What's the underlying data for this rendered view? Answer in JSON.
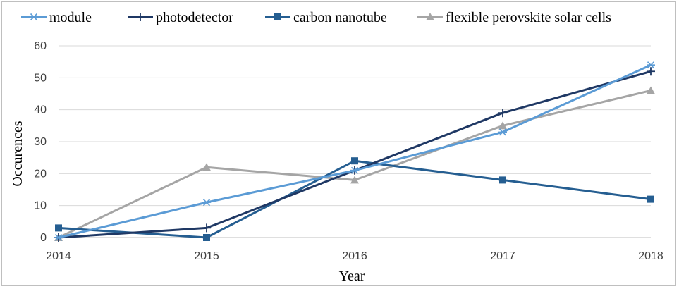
{
  "chart_data": {
    "type": "line",
    "title": "",
    "xlabel": "Year",
    "ylabel": "Occurences",
    "x": [
      "2014",
      "2015",
      "2016",
      "2017",
      "2018"
    ],
    "ylim": [
      0,
      60
    ],
    "yticks": [
      0,
      10,
      20,
      30,
      40,
      50,
      60
    ],
    "grid": true,
    "legend_position": "top",
    "series": [
      {
        "name": "module",
        "values": [
          0,
          11,
          21,
          33,
          54
        ],
        "color": "#5b9bd5",
        "marker": "asterisk"
      },
      {
        "name": "photodetector",
        "values": [
          0,
          3,
          21,
          39,
          52
        ],
        "color": "#1f3864",
        "marker": "plus"
      },
      {
        "name": "carbon nanotube",
        "values": [
          3,
          0,
          24,
          18,
          12
        ],
        "color": "#255e91",
        "marker": "square"
      },
      {
        "name": "flexible perovskite solar cells",
        "values": [
          0,
          22,
          18,
          35,
          46
        ],
        "color": "#a5a5a5",
        "marker": "triangle"
      }
    ]
  }
}
